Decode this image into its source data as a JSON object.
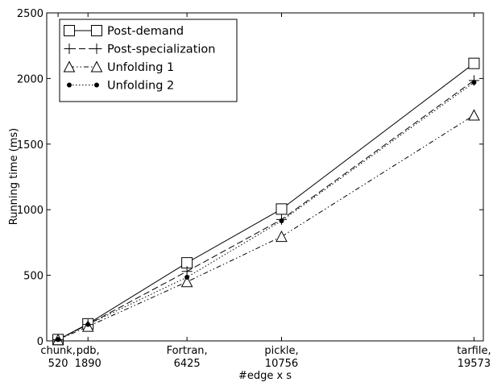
{
  "chart_data": {
    "type": "line",
    "title": "",
    "xlabel": "#edge x s",
    "ylabel": "Running time (ms)",
    "x": [
      520,
      1890,
      6425,
      10756,
      19573
    ],
    "x_tick_labels": [
      [
        "chunk,",
        "520"
      ],
      [
        "pdb,",
        "1890"
      ],
      [
        "Fortran,",
        "6425"
      ],
      [
        "pickle,",
        "10756"
      ],
      [
        "tarfile,",
        "19573"
      ]
    ],
    "xlim": [
      0,
      20000
    ],
    "ylim": [
      0,
      2500
    ],
    "y_ticks": [
      0,
      500,
      1000,
      1500,
      2000,
      2500
    ],
    "grid": false,
    "legend_position": "top-left",
    "series": [
      {
        "name": "Post-demand",
        "marker": "square",
        "dash": "solid",
        "values": [
          10,
          130,
          595,
          1005,
          2115
        ]
      },
      {
        "name": "Post-specialization",
        "marker": "plus",
        "dash": "dashed",
        "values": [
          10,
          125,
          530,
          925,
          1985
        ]
      },
      {
        "name": "Unfolding 1",
        "marker": "triangle",
        "dash": "dashdotdot",
        "values": [
          8,
          110,
          450,
          795,
          1720
        ]
      },
      {
        "name": "Unfolding 2",
        "marker": "dot",
        "dash": "dotted",
        "values": [
          10,
          125,
          485,
          915,
          1970
        ]
      }
    ]
  }
}
